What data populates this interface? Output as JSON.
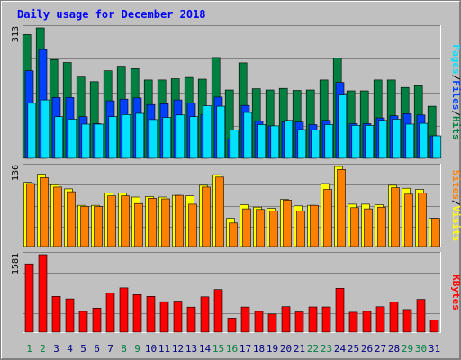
{
  "chart_data": {
    "type": "bar",
    "title": "Daily usage for December 2018",
    "colors": {
      "hits": "#008040",
      "files": "#0040ff",
      "pages": "#00e0ff",
      "visits": "#ffff00",
      "sites": "#ff8000",
      "kbytes": "#ff0000",
      "weekend_day_label": "#008040",
      "weekday_label": "#000080"
    },
    "categories": [
      "1",
      "2",
      "3",
      "4",
      "5",
      "6",
      "7",
      "8",
      "9",
      "10",
      "11",
      "12",
      "13",
      "14",
      "15",
      "16",
      "17",
      "18",
      "19",
      "20",
      "21",
      "22",
      "23",
      "24",
      "25",
      "26",
      "27",
      "28",
      "29",
      "30",
      "31"
    ],
    "weekend_days": [
      "1",
      "2",
      "8",
      "9",
      "15",
      "16",
      "22",
      "23",
      "29",
      "30"
    ],
    "panels": [
      {
        "name": "hits-panel",
        "max_label": "313",
        "ylim": [
          0,
          313
        ],
        "legend": [
          "Pages",
          "Files",
          "Hits"
        ],
        "series": [
          {
            "name": "Hits",
            "values": [
              297,
              313,
              237,
              230,
              195,
              184,
              210,
              221,
              215,
              188,
              188,
              191,
              194,
              190,
              242,
              164,
              229,
              167,
              164,
              168,
              163,
              164,
              188,
              241,
              162,
              162,
              188,
              188,
              170,
              174,
              125
            ]
          },
          {
            "name": "Files",
            "values": [
              210,
              261,
              146,
              146,
              100,
              83,
              138,
              142,
              145,
              129,
              131,
              140,
              133,
              105,
              147,
              47,
              127,
              89,
              78,
              87,
              87,
              81,
              91,
              182,
              83,
              83,
              97,
              102,
              107,
              104,
              54
            ]
          },
          {
            "name": "Pages",
            "values": [
              132,
              140,
              100,
              94,
              82,
              82,
              100,
              105,
              108,
              93,
              98,
              104,
              100,
              126,
              125,
              68,
              110,
              81,
              78,
              91,
              69,
              68,
              81,
              152,
              79,
              79,
              91,
              94,
              82,
              84,
              54
            ]
          }
        ]
      },
      {
        "name": "visits-panel",
        "max_label": "136",
        "ylim": [
          0,
          136
        ],
        "legend": [
          "Sites",
          "Visits"
        ],
        "series": [
          {
            "name": "Visits",
            "values": [
              109,
              123,
              105,
              98,
              70,
              70,
              91,
              91,
              84,
              85,
              84,
              87,
              86,
              104,
              122,
              48,
              71,
              67,
              65,
              80,
              69,
              70,
              107,
              136,
              72,
              72,
              71,
              104,
              99,
              97,
              48
            ]
          },
          {
            "name": "Sites",
            "values": [
              107,
              117,
              101,
              93,
              68,
              68,
              86,
              86,
              73,
              82,
              81,
              87,
              72,
              101,
              118,
              40,
              64,
              63,
              60,
              79,
              60,
              70,
              97,
              131,
              66,
              64,
              67,
              100,
              89,
              91,
              48
            ]
          }
        ]
      },
      {
        "name": "kbytes-panel",
        "max_label": "1581",
        "ylim": [
          0,
          1581
        ],
        "legend": [
          "KBytes"
        ],
        "series": [
          {
            "name": "KBytes",
            "values": [
              1394,
              1581,
              729,
              678,
              424,
              490,
              798,
              902,
              766,
              729,
              621,
              634,
              511,
              720,
              869,
              287,
              512,
              424,
              370,
              521,
              414,
              515,
              515,
              895,
              407,
              424,
              518,
              613,
              462,
              670,
              248
            ]
          }
        ]
      }
    ]
  }
}
